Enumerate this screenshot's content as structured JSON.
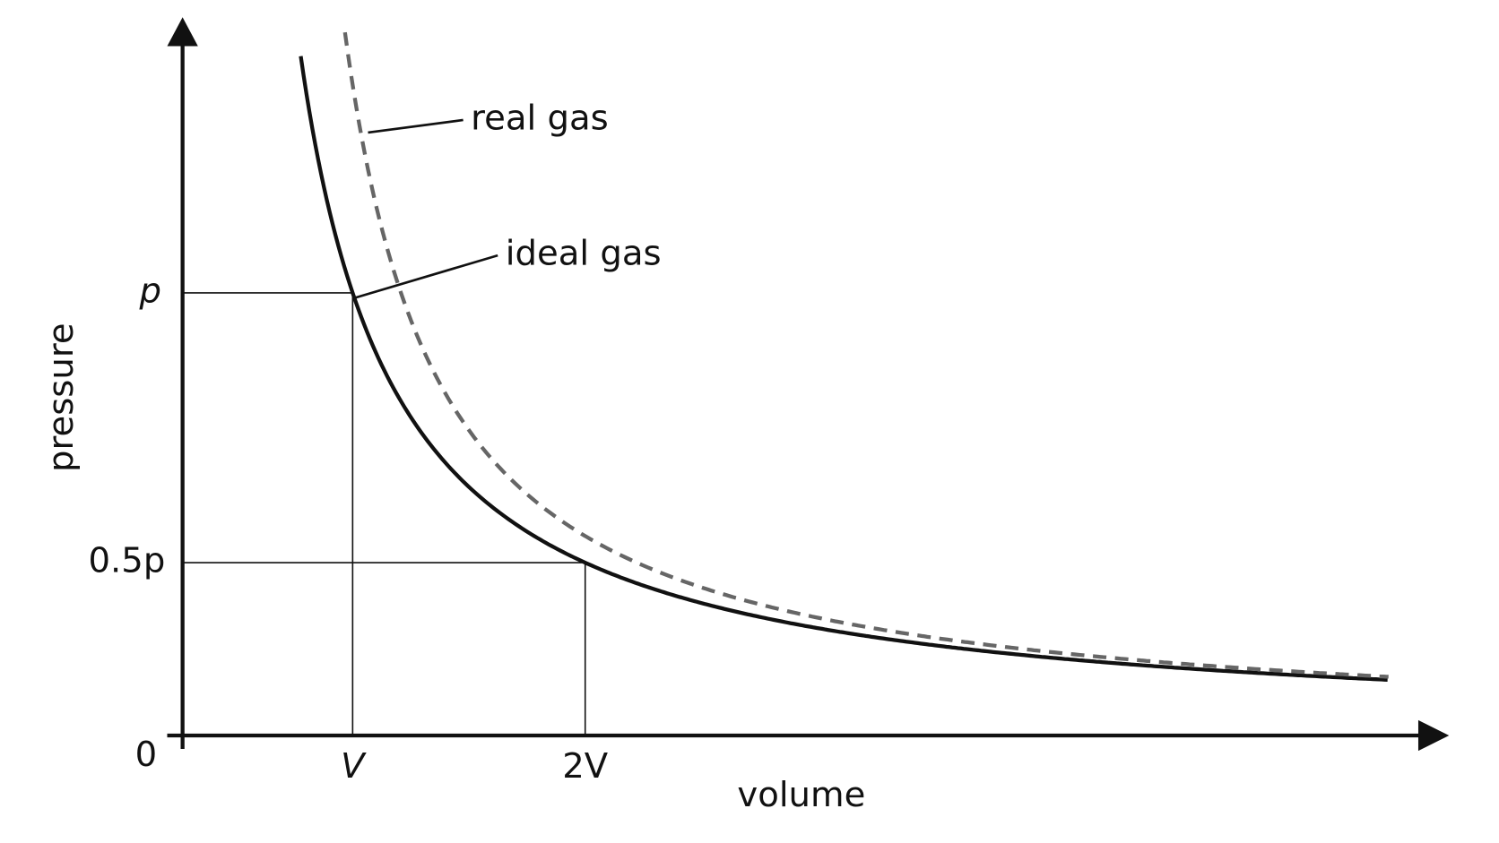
{
  "axes": {
    "y_label": "pressure",
    "x_label": "volume",
    "origin": "0",
    "y_ticks": [
      "p",
      "0.5p"
    ],
    "x_ticks": [
      "V",
      "2V"
    ]
  },
  "curves": {
    "real": "real gas",
    "ideal": "ideal gas"
  }
}
